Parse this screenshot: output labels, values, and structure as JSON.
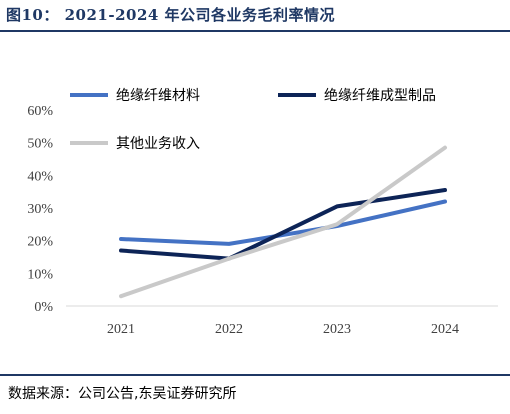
{
  "title": "图10： 2021-2024 年公司各业务毛利率情况",
  "source": "数据来源：公司公告,东吴证券研究所",
  "colors": {
    "rule": "#1f3864",
    "axis": "#d9d9d9",
    "text": "#404040"
  },
  "chart_data": {
    "type": "line",
    "title": "2021-2024 年公司各业务毛利率情况",
    "categories": [
      "2021",
      "2022",
      "2023",
      "2024"
    ],
    "yticks": [
      "0%",
      "10%",
      "20%",
      "30%",
      "40%",
      "50%",
      "60%"
    ],
    "ylim": [
      0,
      60
    ],
    "grid": false,
    "legend_position": "top-left",
    "series": [
      {
        "name": "绝缘纤维材料",
        "color": "#4472c4",
        "values": [
          20.5,
          19.0,
          24.5,
          32.0
        ]
      },
      {
        "name": "绝缘纤维成型制品",
        "color": "#0d2457",
        "values": [
          17.0,
          14.5,
          30.5,
          35.5
        ]
      },
      {
        "name": "其他业务收入",
        "color": "#c9c9c9",
        "values": [
          3.0,
          14.5,
          25.0,
          48.5
        ]
      }
    ]
  }
}
